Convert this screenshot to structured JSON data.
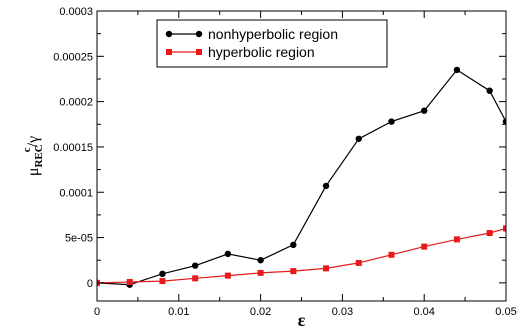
{
  "chart_data": {
    "type": "line",
    "title": "",
    "xlabel": "ε",
    "ylabel_main": "μ",
    "ylabel_sub": "REC",
    "ylabel_sup": "c",
    "ylabel_tail": "/γ",
    "xlim": [
      0,
      0.05
    ],
    "ylim": [
      -2e-05,
      0.0003
    ],
    "x_ticks": [
      0,
      0.01,
      0.02,
      0.03,
      0.04,
      0.05
    ],
    "x_tick_labels": [
      "0",
      "0.01",
      "0.02",
      "0.03",
      "0.04",
      "0.05"
    ],
    "y_ticks": [
      0,
      5e-05,
      0.0001,
      0.00015,
      0.0002,
      0.00025,
      0.0003
    ],
    "y_tick_labels": [
      "0",
      "5e-05",
      "0.0001",
      "0.00015",
      "0.0002",
      "0.00025",
      "0.0003"
    ],
    "grid": false,
    "legend_position": "top-center",
    "series": [
      {
        "name": "nonhyperbolic region",
        "color": "#000000",
        "marker": "circle",
        "x": [
          0,
          0.004,
          0.008,
          0.012,
          0.016,
          0.02,
          0.024,
          0.028,
          0.032,
          0.036,
          0.04,
          0.044,
          0.048,
          0.05
        ],
        "y": [
          0,
          -2e-06,
          1e-05,
          1.9e-05,
          3.2e-05,
          2.5e-05,
          4.2e-05,
          0.000107,
          0.000159,
          0.000178,
          0.00019,
          0.000235,
          0.000212,
          0.000178
        ]
      },
      {
        "name": "hyperbolic region",
        "color": "#e8191b",
        "marker": "square",
        "x": [
          0,
          0.004,
          0.008,
          0.012,
          0.016,
          0.02,
          0.024,
          0.028,
          0.032,
          0.036,
          0.04,
          0.044,
          0.048,
          0.05
        ],
        "y": [
          0,
          1e-06,
          2e-06,
          5e-06,
          8e-06,
          1.1e-05,
          1.3e-05,
          1.6e-05,
          2.2e-05,
          3.1e-05,
          4e-05,
          4.8e-05,
          5.5e-05,
          6e-05
        ]
      }
    ]
  }
}
